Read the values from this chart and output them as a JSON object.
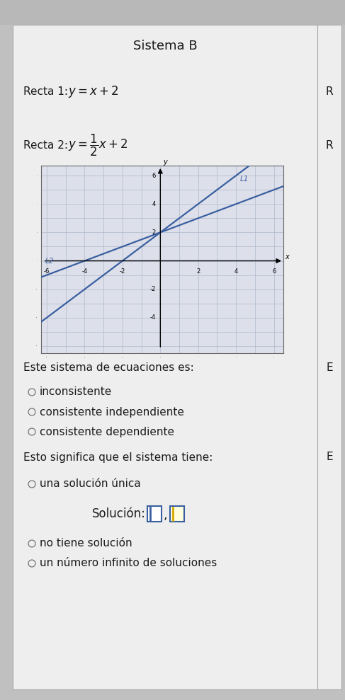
{
  "title": "Sistema B",
  "line1_slope": 1,
  "line1_intercept": 2,
  "line2_slope": 0.5,
  "line2_intercept": 2,
  "line_color": "#3a5fa0",
  "graph_bg": "#dde0ea",
  "grid_color": "#b0b8cc",
  "axis_range": [
    -6,
    6
  ],
  "L1_label": "L1",
  "L2_label": "L2",
  "question1": "Este sistema de ecuaciones es:",
  "options1": [
    "inconsistente",
    "consistente independiente",
    "consistente dependiente"
  ],
  "question2": "Esto significa que el sistema tiene:",
  "option_una": "una solución úniica",
  "solucion_label": "Solución:",
  "options2_after": [
    "no tiene solución",
    "un número infinito de soluciones"
  ],
  "panel_bg": "#efefef",
  "panel_bg2": "#e8e8e8",
  "top_bar_bg": "#c8c8c8",
  "text_color": "#1a1a1a",
  "font_size_title": 13,
  "font_size_body": 11
}
